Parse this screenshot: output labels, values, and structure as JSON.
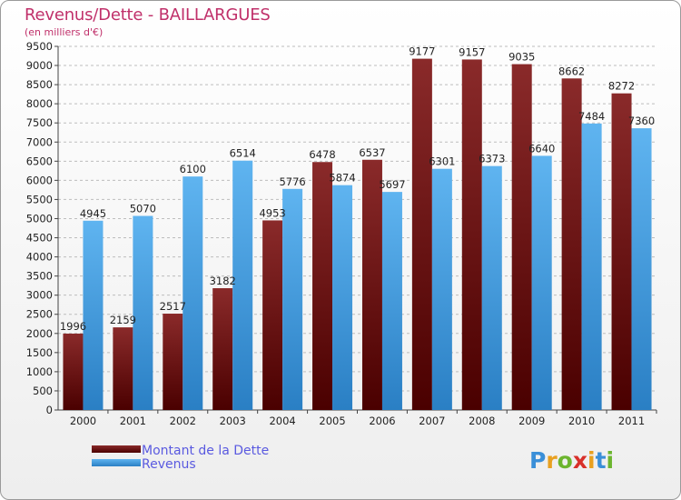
{
  "header": {
    "title": "Revenus/Dette - BAILLARGUES",
    "subtitle": "(en milliers d'€)"
  },
  "chart_data": {
    "type": "bar",
    "categories": [
      "2000",
      "2001",
      "2002",
      "2003",
      "2004",
      "2005",
      "2006",
      "2007",
      "2008",
      "2009",
      "2010",
      "2011"
    ],
    "series": [
      {
        "name": "Montant de la Dette",
        "color": "#7a1a1a",
        "values": [
          1996,
          2159,
          2517,
          3182,
          4953,
          6478,
          6537,
          9177,
          9157,
          9035,
          8662,
          8272
        ]
      },
      {
        "name": "Revenus",
        "color": "#4aa3e6",
        "values": [
          4945,
          5070,
          6100,
          6514,
          5776,
          5874,
          5697,
          6301,
          6373,
          6640,
          7484,
          7360
        ]
      }
    ],
    "ylim": [
      0,
      9500
    ],
    "ytick_step": 500,
    "grid": true,
    "legend_position": "bottom-left"
  },
  "logo": {
    "letters": [
      "P",
      "r",
      "o",
      "x",
      "i",
      "t",
      "i"
    ],
    "colors": [
      "#3a8fd8",
      "#e8a020",
      "#6cb52e",
      "#d8302a",
      "#e8a020",
      "#3a8fd8",
      "#6cb52e"
    ]
  }
}
